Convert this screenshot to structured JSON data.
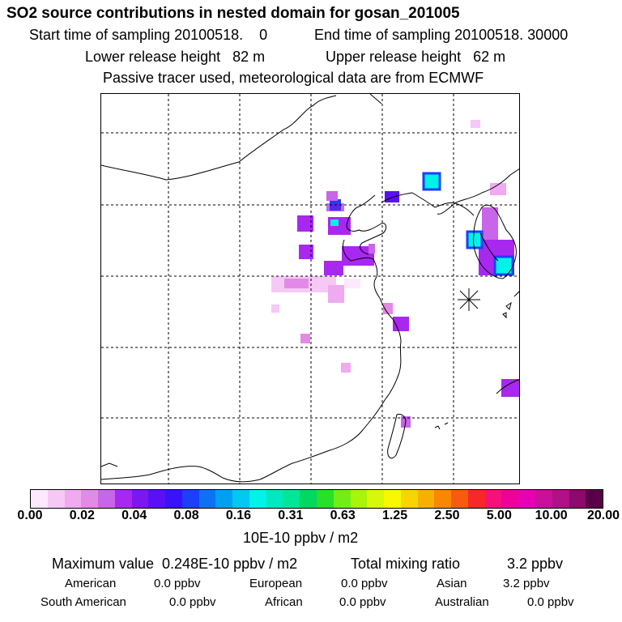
{
  "header": {
    "title": "SO2 source contributions in nested domain for gosan_201005",
    "start_label": "Start time of sampling 20100518.    0",
    "end_label": "End time of sampling 20100518. 30000",
    "lower_label": "Lower release height   82 m",
    "upper_label": "Upper release height   62 m",
    "tracer_note": "Passive tracer used, meteorological data are from ECMWF"
  },
  "colorbar": {
    "ticks": [
      "0.00",
      "0.02",
      "0.04",
      "0.08",
      "0.16",
      "0.31",
      "0.63",
      "1.25",
      "2.50",
      "5.00",
      "10.00",
      "20.00"
    ],
    "colors": [
      "#fde8fd",
      "#f6c8f6",
      "#efaaf0",
      "#e28ae6",
      "#c865e8",
      "#a828f0",
      "#7e16f0",
      "#5a10f6",
      "#3a12fa",
      "#1a40fa",
      "#0d72f2",
      "#00a0f0",
      "#00c8f0",
      "#00f2e8",
      "#00e8c0",
      "#00e698",
      "#00d860",
      "#28e028",
      "#70ee16",
      "#a8f40a",
      "#d8f80a",
      "#f8f800",
      "#f8d400",
      "#f8b000",
      "#f88800",
      "#f85a10",
      "#f82828",
      "#f8107a",
      "#f00098",
      "#e800b4",
      "#c8109a",
      "#b01088",
      "#8c0a6c",
      "#5a0048"
    ],
    "unit_label": "10E-10 ppbv / m2"
  },
  "summary": {
    "max_label": "Maximum value  0.248E-10 ppbv / m2",
    "total_label": "Total mixing ratio",
    "total_value": "3.2 ppbv",
    "regions": [
      {
        "name": "American",
        "value": "0.0 ppbv"
      },
      {
        "name": "European",
        "value": "0.0 ppbv"
      },
      {
        "name": "Asian",
        "value": "3.2 ppbv"
      },
      {
        "name": "South American",
        "value": "0.0 ppbv"
      },
      {
        "name": "African",
        "value": "0.0 ppbv"
      },
      {
        "name": "Australian",
        "value": "0.0 ppbv"
      }
    ]
  },
  "map": {
    "site_marker": "gosan-site-icon"
  }
}
